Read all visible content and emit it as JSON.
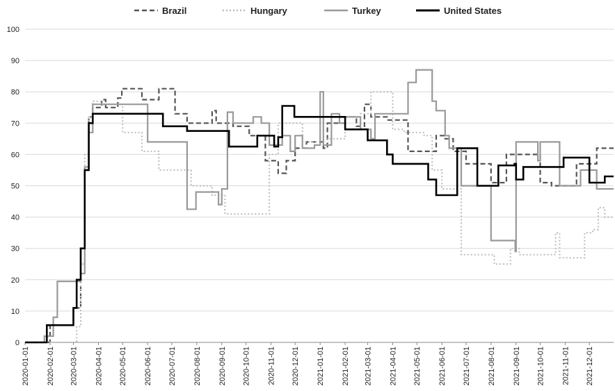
{
  "chart_data": {
    "type": "line",
    "title": "",
    "xlabel": "",
    "ylabel": "",
    "ylim": [
      0,
      100
    ],
    "xlim": [
      "2020-01-01",
      "2021-12-31"
    ],
    "grid": true,
    "legend_position": "top",
    "x_ticks": [
      "2020-01-01",
      "2020-02-01",
      "2020-03-01",
      "2020-04-01",
      "2020-05-01",
      "2020-06-01",
      "2020-07-01",
      "2020-08-01",
      "2020-09-01",
      "2020-10-01",
      "2020-11-01",
      "2020-12-01",
      "2021-01-01",
      "2021-02-01",
      "2021-03-01",
      "2021-04-01",
      "2021-05-01",
      "2021-06-01",
      "2021-07-01",
      "2021-08-01",
      "2021-09-01",
      "2021-10-01",
      "2021-11-01",
      "2021-12-01"
    ],
    "y_ticks": [
      "0",
      "10",
      "20",
      "30",
      "40",
      "50",
      "60",
      "70",
      "80",
      "90",
      "100"
    ],
    "series": [
      {
        "name": "Brazil",
        "color": "#555555",
        "style": "dashed",
        "points": [
          [
            "2020-01-01",
            0
          ],
          [
            "2020-02-01",
            5.5
          ],
          [
            "2020-03-01",
            11
          ],
          [
            "2020-03-10",
            30
          ],
          [
            "2020-03-15",
            55
          ],
          [
            "2020-03-20",
            72
          ],
          [
            "2020-03-25",
            75
          ],
          [
            "2020-04-05",
            77.5
          ],
          [
            "2020-04-10",
            75
          ],
          [
            "2020-04-25",
            78
          ],
          [
            "2020-04-30",
            81
          ],
          [
            "2020-05-25",
            77.5
          ],
          [
            "2020-06-15",
            81
          ],
          [
            "2020-07-05",
            73
          ],
          [
            "2020-07-20",
            70
          ],
          [
            "2020-08-20",
            74
          ],
          [
            "2020-08-25",
            70
          ],
          [
            "2020-09-15",
            69
          ],
          [
            "2020-10-05",
            66
          ],
          [
            "2020-10-25",
            58
          ],
          [
            "2020-11-10",
            54
          ],
          [
            "2020-11-20",
            58
          ],
          [
            "2020-12-01",
            62
          ],
          [
            "2020-12-15",
            64
          ],
          [
            "2021-01-05",
            62
          ],
          [
            "2021-01-10",
            70
          ],
          [
            "2021-02-01",
            72
          ],
          [
            "2021-02-15",
            69
          ],
          [
            "2021-02-25",
            76
          ],
          [
            "2021-03-05",
            72
          ],
          [
            "2021-03-25",
            71
          ],
          [
            "2021-04-20",
            61
          ],
          [
            "2021-05-10",
            61
          ],
          [
            "2021-05-25",
            66
          ],
          [
            "2021-06-05",
            65
          ],
          [
            "2021-06-15",
            61
          ],
          [
            "2021-07-01",
            57
          ],
          [
            "2021-08-01",
            51
          ],
          [
            "2021-08-20",
            60
          ],
          [
            "2021-10-01",
            51
          ],
          [
            "2021-10-15",
            50
          ],
          [
            "2021-11-15",
            57
          ],
          [
            "2021-12-10",
            62
          ],
          [
            "2021-12-31",
            62
          ]
        ]
      },
      {
        "name": "Hungary",
        "color": "#bbbbbb",
        "style": "dotted",
        "points": [
          [
            "2020-01-01",
            0
          ],
          [
            "2020-03-01",
            0
          ],
          [
            "2020-03-05",
            5
          ],
          [
            "2020-03-10",
            25
          ],
          [
            "2020-03-15",
            60
          ],
          [
            "2020-03-20",
            72
          ],
          [
            "2020-03-25",
            77
          ],
          [
            "2020-04-05",
            76
          ],
          [
            "2020-04-25",
            76
          ],
          [
            "2020-05-01",
            67
          ],
          [
            "2020-05-25",
            61
          ],
          [
            "2020-06-15",
            55
          ],
          [
            "2020-07-25",
            50
          ],
          [
            "2020-08-20",
            47
          ],
          [
            "2020-09-05",
            41
          ],
          [
            "2020-10-25",
            41
          ],
          [
            "2020-10-30",
            60
          ],
          [
            "2020-11-10",
            70
          ],
          [
            "2020-12-01",
            70
          ],
          [
            "2020-12-10",
            64
          ],
          [
            "2021-01-05",
            65
          ],
          [
            "2021-02-01",
            72
          ],
          [
            "2021-02-20",
            73
          ],
          [
            "2021-03-05",
            80
          ],
          [
            "2021-03-25",
            80
          ],
          [
            "2021-04-01",
            68
          ],
          [
            "2021-04-15",
            67
          ],
          [
            "2021-05-10",
            66
          ],
          [
            "2021-05-20",
            55
          ],
          [
            "2021-06-01",
            49
          ],
          [
            "2021-06-15",
            49
          ],
          [
            "2021-06-25",
            28
          ],
          [
            "2021-07-25",
            28
          ],
          [
            "2021-08-05",
            25
          ],
          [
            "2021-08-20",
            25
          ],
          [
            "2021-08-25",
            30
          ],
          [
            "2021-09-05",
            28
          ],
          [
            "2021-10-15",
            28
          ],
          [
            "2021-10-20",
            35
          ],
          [
            "2021-10-25",
            27
          ],
          [
            "2021-11-20",
            27
          ],
          [
            "2021-11-25",
            35
          ],
          [
            "2021-12-05",
            36
          ],
          [
            "2021-12-12",
            43
          ],
          [
            "2021-12-20",
            40
          ],
          [
            "2021-12-31",
            40
          ]
        ]
      },
      {
        "name": "Turkey",
        "color": "#999999",
        "style": "solid",
        "points": [
          [
            "2020-01-01",
            0
          ],
          [
            "2020-01-20",
            0
          ],
          [
            "2020-01-25",
            2
          ],
          [
            "2020-02-05",
            8
          ],
          [
            "2020-02-10",
            19.5
          ],
          [
            "2020-03-05",
            19.5
          ],
          [
            "2020-03-10",
            22
          ],
          [
            "2020-03-15",
            56
          ],
          [
            "2020-03-20",
            67
          ],
          [
            "2020-03-25",
            76
          ],
          [
            "2020-04-01",
            76
          ],
          [
            "2020-05-25",
            76
          ],
          [
            "2020-06-01",
            64
          ],
          [
            "2020-07-15",
            64
          ],
          [
            "2020-07-20",
            42.5
          ],
          [
            "2020-07-25",
            42.5
          ],
          [
            "2020-07-31",
            48
          ],
          [
            "2020-08-25",
            48
          ],
          [
            "2020-08-28",
            44
          ],
          [
            "2020-09-01",
            49
          ],
          [
            "2020-09-08",
            73.5
          ],
          [
            "2020-09-15",
            70
          ],
          [
            "2020-10-10",
            72
          ],
          [
            "2020-10-20",
            70
          ],
          [
            "2020-10-30",
            63
          ],
          [
            "2020-11-15",
            66
          ],
          [
            "2020-11-25",
            61
          ],
          [
            "2020-12-01",
            66
          ],
          [
            "2020-12-10",
            62
          ],
          [
            "2020-12-25",
            63
          ],
          [
            "2021-01-01",
            80
          ],
          [
            "2021-01-05",
            63
          ],
          [
            "2021-01-15",
            73
          ],
          [
            "2021-01-25",
            70
          ],
          [
            "2021-02-01",
            72
          ],
          [
            "2021-02-20",
            68
          ],
          [
            "2021-03-05",
            65
          ],
          [
            "2021-03-10",
            73
          ],
          [
            "2021-04-15",
            73
          ],
          [
            "2021-04-20",
            83
          ],
          [
            "2021-04-30",
            87
          ],
          [
            "2021-05-20",
            77
          ],
          [
            "2021-05-25",
            74
          ],
          [
            "2021-06-05",
            66
          ],
          [
            "2021-06-10",
            62
          ],
          [
            "2021-06-25",
            50
          ],
          [
            "2021-07-15",
            50
          ],
          [
            "2021-07-25",
            50
          ],
          [
            "2021-08-01",
            32.5
          ],
          [
            "2021-08-25",
            32.5
          ],
          [
            "2021-08-31",
            29
          ],
          [
            "2021-09-01",
            64
          ],
          [
            "2021-09-25",
            64
          ],
          [
            "2021-09-28",
            58
          ],
          [
            "2021-10-01",
            64
          ],
          [
            "2021-10-20",
            64
          ],
          [
            "2021-10-25",
            50
          ],
          [
            "2021-11-15",
            50
          ],
          [
            "2021-11-20",
            55
          ],
          [
            "2021-12-05",
            55
          ],
          [
            "2021-12-10",
            49
          ],
          [
            "2021-12-31",
            49
          ]
        ]
      },
      {
        "name": "United States",
        "color": "#000000",
        "style": "solid",
        "points": [
          [
            "2020-01-01",
            0
          ],
          [
            "2020-01-25",
            0
          ],
          [
            "2020-01-28",
            5.5
          ],
          [
            "2020-02-25",
            5.5
          ],
          [
            "2020-03-01",
            11
          ],
          [
            "2020-03-05",
            20
          ],
          [
            "2020-03-10",
            30
          ],
          [
            "2020-03-15",
            55
          ],
          [
            "2020-03-20",
            70
          ],
          [
            "2020-03-25",
            73
          ],
          [
            "2020-04-01",
            73
          ],
          [
            "2020-06-15",
            73
          ],
          [
            "2020-06-20",
            69
          ],
          [
            "2020-07-15",
            69
          ],
          [
            "2020-07-20",
            67.5
          ],
          [
            "2020-09-05",
            67.5
          ],
          [
            "2020-09-10",
            62.5
          ],
          [
            "2020-10-10",
            62.5
          ],
          [
            "2020-10-15",
            66
          ],
          [
            "2020-10-25",
            66
          ],
          [
            "2020-11-05",
            62.5
          ],
          [
            "2020-11-10",
            65.5
          ],
          [
            "2020-11-15",
            75.5
          ],
          [
            "2020-11-30",
            72
          ],
          [
            "2021-01-20",
            72
          ],
          [
            "2021-02-01",
            68
          ],
          [
            "2021-02-25",
            68
          ],
          [
            "2021-03-01",
            64.5
          ],
          [
            "2021-03-20",
            64.5
          ],
          [
            "2021-03-25",
            60
          ],
          [
            "2021-04-01",
            57
          ],
          [
            "2021-04-30",
            57
          ],
          [
            "2021-05-15",
            52
          ],
          [
            "2021-05-20",
            52
          ],
          [
            "2021-05-25",
            47
          ],
          [
            "2021-06-15",
            47
          ],
          [
            "2021-06-20",
            62
          ],
          [
            "2021-07-10",
            62
          ],
          [
            "2021-07-15",
            50
          ],
          [
            "2021-08-05",
            50
          ],
          [
            "2021-08-10",
            56.5
          ],
          [
            "2021-08-25",
            56.5
          ],
          [
            "2021-08-30",
            57
          ],
          [
            "2021-09-01",
            52
          ],
          [
            "2021-09-10",
            56
          ],
          [
            "2021-10-25",
            56
          ],
          [
            "2021-10-30",
            59
          ],
          [
            "2021-11-25",
            59
          ],
          [
            "2021-12-01",
            51
          ],
          [
            "2021-12-15",
            51
          ],
          [
            "2021-12-20",
            53
          ],
          [
            "2021-12-31",
            53
          ]
        ]
      }
    ]
  }
}
